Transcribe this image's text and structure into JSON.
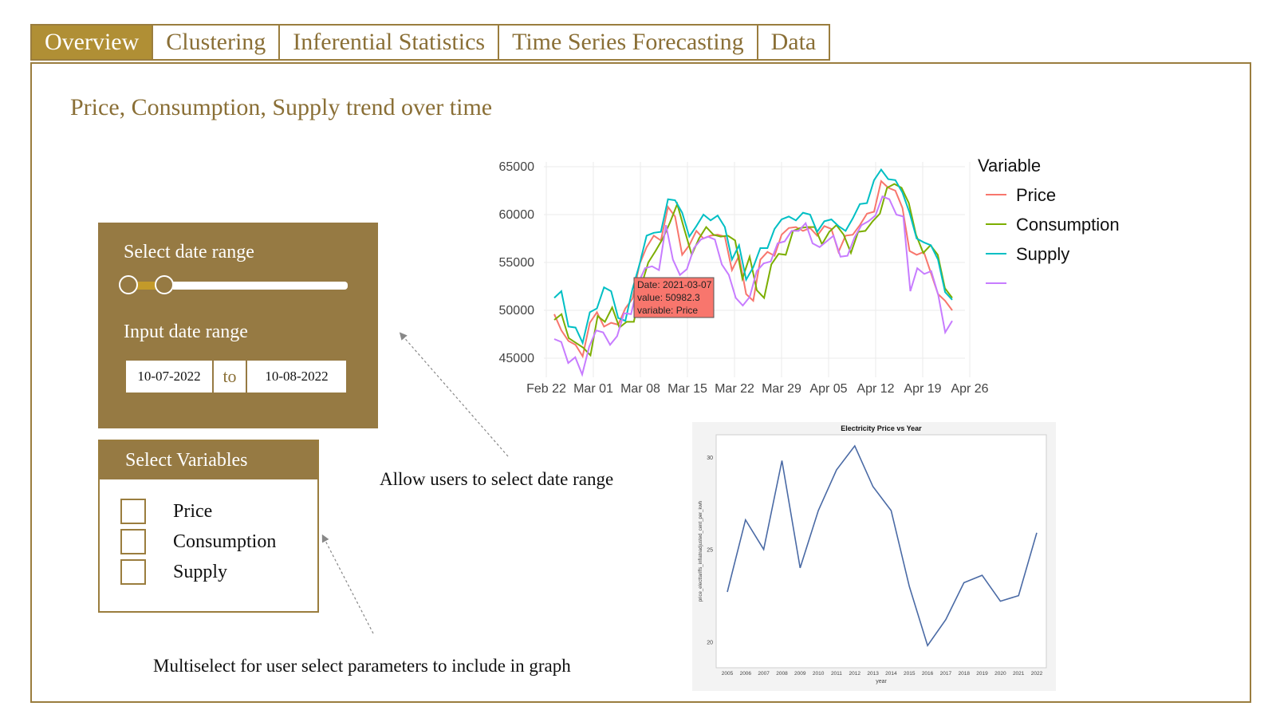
{
  "tabs": [
    "Overview",
    "Clustering",
    "Inferential Statistics",
    "Time Series Forecasting",
    "Data"
  ],
  "page_title": "Price, Consumption, Supply trend over time",
  "date_range": {
    "label": "Select date range",
    "input_label": "Input date range",
    "start": "10-07-2022",
    "separator": "to",
    "end": "10-08-2022"
  },
  "variables": {
    "header": "Select Variables",
    "options": [
      "Price",
      "Consumption",
      "Supply"
    ]
  },
  "notes": {
    "date_range": "Allow users to select date range",
    "multiselect": "Multiselect for user select parameters to include in graph"
  },
  "colors": {
    "accent": "#967a43",
    "tab_active": "#b08f35",
    "title": "#8a6f36"
  },
  "chart_data": [
    {
      "type": "line",
      "title": "",
      "xlabel": "",
      "ylabel": "",
      "x_tick_labels": [
        "Feb 22",
        "Mar 01",
        "Mar 08",
        "Mar 15",
        "Mar 22",
        "Mar 29",
        "Apr 05",
        "Apr 12",
        "Apr 19",
        "Apr 26"
      ],
      "y_ticks": [
        45000,
        50000,
        55000,
        60000,
        65000
      ],
      "ylim": [
        43000,
        65500
      ],
      "legend_title": "Variable",
      "legend_position": "right",
      "grid": true,
      "series": [
        {
          "name": "Price",
          "color": "#f8766d",
          "values": [
            49600,
            47900,
            46800,
            46400,
            45200,
            48700,
            49800,
            48300,
            48700,
            48500,
            50200,
            51200,
            54800,
            56600,
            57800,
            57300,
            60800,
            59800,
            55800,
            56800,
            58300,
            57500,
            57800,
            57900,
            57700,
            54200,
            55700,
            51700,
            51000,
            55300,
            56100,
            55700,
            57900,
            58600,
            58700,
            58300,
            58600,
            57800,
            58800,
            58500,
            56100,
            57800,
            57900,
            58900,
            60100,
            60300,
            63500,
            62800,
            62500,
            60700,
            56200,
            55800,
            56100,
            53900,
            51700,
            51000,
            50000
          ]
        },
        {
          "name": "Consumption",
          "color": "#7cae00",
          "values": [
            49000,
            49600,
            47100,
            46600,
            46100,
            45300,
            49400,
            48800,
            50300,
            48200,
            48800,
            48800,
            52500,
            55000,
            56200,
            57500,
            59200,
            61100,
            58400,
            55800,
            57500,
            58700,
            57900,
            57700,
            57800,
            57300,
            53300,
            55600,
            52100,
            51300,
            54800,
            55900,
            55800,
            58300,
            58600,
            58700,
            58700,
            56900,
            58200,
            58900,
            57900,
            56000,
            58200,
            58300,
            59300,
            60100,
            62800,
            63200,
            62800,
            61200,
            57900,
            56000,
            56800,
            55800,
            52300,
            51300
          ]
        },
        {
          "name": "Supply",
          "color": "#00bfc4",
          "values": [
            51300,
            52000,
            48300,
            48200,
            46600,
            49800,
            50200,
            52400,
            52000,
            49200,
            48900,
            52200,
            54800,
            57800,
            58100,
            58200,
            61600,
            61500,
            60200,
            57700,
            58800,
            60000,
            59400,
            59900,
            58700,
            55300,
            56800,
            53200,
            54500,
            56500,
            56500,
            58500,
            59500,
            59800,
            59400,
            60200,
            60000,
            58200,
            59300,
            59500,
            58800,
            58300,
            59600,
            61100,
            61200,
            63600,
            64700,
            63700,
            63600,
            62300,
            60200,
            57500,
            57100,
            56800,
            55300,
            51900,
            51100
          ]
        },
        {
          "name": "",
          "color": "#c77cff",
          "values": [
            47000,
            46700,
            44500,
            45100,
            43300,
            46200,
            47900,
            47700,
            46400,
            47300,
            49700,
            49600,
            52800,
            54400,
            54600,
            54200,
            58900,
            55300,
            53700,
            54300,
            56500,
            57400,
            57700,
            57400,
            54800,
            53700,
            51300,
            50500,
            51400,
            54100,
            54900,
            55100,
            57000,
            57200,
            58300,
            58300,
            59100,
            57000,
            56600,
            57200,
            57800,
            55600,
            55700,
            57600,
            58900,
            59300,
            59900,
            61900,
            61600,
            60000,
            59800,
            52000,
            54400,
            53800,
            54100,
            51600,
            47700,
            48900
          ]
        }
      ],
      "tooltip": {
        "date": "Date: 2021-03-07",
        "value": "value: 50982.3",
        "variable": "variable: Price"
      }
    },
    {
      "type": "line",
      "title": "Electricity Price vs Year",
      "xlabel": "year",
      "ylabel": "price_electtariffs_inflatnadjusted_cent_per_kwh",
      "categories": [
        "2005",
        "2006",
        "2007",
        "2008",
        "2009",
        "2010",
        "2011",
        "2012",
        "2013",
        "2014",
        "2015",
        "2016",
        "2017",
        "2018",
        "2019",
        "2020",
        "2021",
        "2022"
      ],
      "y_ticks": [
        20,
        25,
        30
      ],
      "ylim": [
        18.6,
        31.2
      ],
      "series": [
        {
          "name": "",
          "color": "#4a6aa5",
          "values": [
            22.7,
            26.6,
            25.0,
            29.8,
            24.0,
            27.1,
            29.3,
            30.6,
            28.4,
            27.1,
            23.0,
            19.8,
            21.2,
            23.2,
            23.6,
            22.2,
            22.5,
            25.9
          ]
        }
      ]
    }
  ]
}
